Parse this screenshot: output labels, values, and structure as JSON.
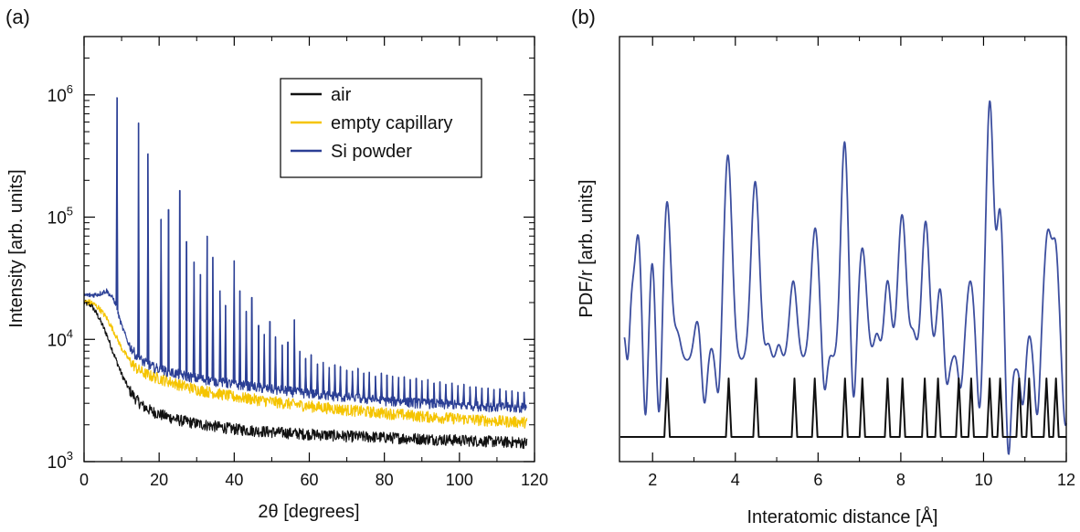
{
  "colors": {
    "air": "#111111",
    "capillary": "#f5c400",
    "si": "#2b3f95",
    "pdf": "#3d4f9f",
    "ref": "#111111",
    "axis": "#000000"
  },
  "chart_data": [
    {
      "panel": "(a)",
      "type": "line",
      "xlabel": "2θ [degrees]",
      "ylabel": "Intensity [arb. units]",
      "xlim": [
        0,
        120
      ],
      "ylim": [
        1000,
        3000000
      ],
      "yscale": "log",
      "xticks": [
        "0",
        "20",
        "40",
        "60",
        "80",
        "100",
        "120"
      ],
      "yticks": [
        {
          "base": "10",
          "exp": "3",
          "value": 1000
        },
        {
          "base": "10",
          "exp": "4",
          "value": 10000
        },
        {
          "base": "10",
          "exp": "5",
          "value": 100000
        },
        {
          "base": "10",
          "exp": "6",
          "value": 1000000
        }
      ],
      "legend_position": "top-right",
      "series": [
        {
          "name": "air",
          "color": "#111111",
          "x": [
            0,
            2,
            4,
            6,
            8,
            10,
            12,
            14,
            16,
            18,
            20,
            25,
            30,
            40,
            50,
            60,
            70,
            80,
            90,
            100,
            110,
            118
          ],
          "y": [
            20000,
            19000,
            15000,
            11000,
            7500,
            5200,
            3900,
            3200,
            2800,
            2600,
            2450,
            2200,
            2050,
            1850,
            1750,
            1680,
            1620,
            1580,
            1540,
            1500,
            1460,
            1430
          ]
        },
        {
          "name": "empty capillary",
          "color": "#f5c400",
          "x": [
            0,
            2,
            4,
            6,
            8,
            10,
            12,
            14,
            16,
            18,
            20,
            25,
            30,
            40,
            50,
            60,
            70,
            80,
            90,
            100,
            110,
            118
          ],
          "y": [
            20500,
            20000,
            18000,
            15000,
            11500,
            8500,
            6800,
            5800,
            5300,
            5000,
            4800,
            4300,
            3900,
            3400,
            3100,
            2850,
            2650,
            2500,
            2350,
            2250,
            2150,
            2100
          ]
        },
        {
          "name": "Si powder",
          "color": "#2b3f95",
          "x": [
            0,
            2,
            4,
            6,
            8,
            10,
            12,
            14,
            16,
            18,
            20,
            25,
            30,
            40,
            50,
            60,
            70,
            80,
            90,
            100,
            110,
            118
          ],
          "y": [
            23000,
            23000,
            23500,
            25000,
            21000,
            13000,
            9000,
            7300,
            6500,
            6000,
            5700,
            5200,
            4800,
            4300,
            3900,
            3600,
            3350,
            3150,
            3000,
            2900,
            2800,
            2750
          ],
          "peaks_x": [
            8.8,
            14.5,
            17.0,
            20.5,
            22.5,
            25.5,
            27.3,
            29.3,
            31.0,
            32.8,
            34.3,
            36.2,
            37.7,
            40.0,
            41.5,
            43.2,
            44.7,
            46.5,
            48.0,
            49.5,
            51.0,
            52.8,
            54.3,
            56.0,
            57.5,
            59.0,
            60.5,
            62.2,
            63.7,
            65.3,
            66.8,
            68.3,
            70.0,
            71.5,
            73.0,
            74.5,
            76.0,
            77.6,
            79.2,
            80.7,
            82.2,
            83.8,
            85.3,
            86.9,
            88.5,
            90.0,
            91.6,
            93.2,
            94.8,
            96.4,
            98.0,
            99.6,
            101.2,
            102.8,
            104.4,
            106.0,
            107.6,
            109.2,
            110.8,
            112.4,
            114.0,
            115.6,
            117.2
          ],
          "peaks_y": [
            950000,
            590000,
            330000,
            96000,
            115000,
            165000,
            63000,
            43000,
            34000,
            70000,
            47000,
            25000,
            19000,
            44000,
            25000,
            17000,
            22000,
            13000,
            11000,
            14000,
            10500,
            9000,
            9500,
            14500,
            8000,
            7000,
            7500,
            6300,
            6500,
            5900,
            6200,
            6000,
            5600,
            5500,
            5800,
            5300,
            5400,
            5000,
            5300,
            5100,
            5000,
            4900,
            4950,
            4700,
            4800,
            4600,
            4700,
            4400,
            4500,
            4300,
            4400,
            4200,
            4300,
            4100,
            4100,
            4000,
            4000,
            3900,
            3950,
            3800,
            3800,
            3700,
            3700
          ]
        }
      ]
    },
    {
      "panel": "(b)",
      "type": "line",
      "xlabel": "Interatomic distance [Å]",
      "ylabel": "PDF/r [arb. units]",
      "xlim": [
        1.2,
        12
      ],
      "xticks": [
        "2",
        "4",
        "6",
        "8",
        "10",
        "12"
      ],
      "series": [
        {
          "name": "",
          "color": "#3d4f9f",
          "baseline": -0.1,
          "peaks": [
            {
              "x": 1.33,
              "h": 0.25,
              "w": 0.07
            },
            {
              "x": 1.48,
              "h": 0.35,
              "w": 0.06
            },
            {
              "x": 1.65,
              "h": 0.95,
              "w": 0.09
            },
            {
              "x": 1.99,
              "h": 0.75,
              "w": 0.07
            },
            {
              "x": 2.35,
              "h": 1.2,
              "w": 0.09
            },
            {
              "x": 2.6,
              "h": 0.2,
              "w": 0.08
            },
            {
              "x": 3.08,
              "h": 0.3,
              "w": 0.08
            },
            {
              "x": 3.42,
              "h": 0.1,
              "w": 0.06
            },
            {
              "x": 3.82,
              "h": 1.55,
              "w": 0.1
            },
            {
              "x": 4.48,
              "h": 1.35,
              "w": 0.1
            },
            {
              "x": 4.8,
              "h": 0.12,
              "w": 0.06
            },
            {
              "x": 5.05,
              "h": 0.12,
              "w": 0.06
            },
            {
              "x": 5.4,
              "h": 0.6,
              "w": 0.09
            },
            {
              "x": 5.93,
              "h": 1.0,
              "w": 0.1
            },
            {
              "x": 6.28,
              "h": 0.05,
              "w": 0.06
            },
            {
              "x": 6.64,
              "h": 1.65,
              "w": 0.09
            },
            {
              "x": 7.07,
              "h": 0.85,
              "w": 0.1
            },
            {
              "x": 7.42,
              "h": 0.2,
              "w": 0.07
            },
            {
              "x": 7.68,
              "h": 0.6,
              "w": 0.08
            },
            {
              "x": 8.03,
              "h": 1.1,
              "w": 0.1
            },
            {
              "x": 8.3,
              "h": 0.2,
              "w": 0.07
            },
            {
              "x": 8.6,
              "h": 1.05,
              "w": 0.09
            },
            {
              "x": 8.95,
              "h": 0.55,
              "w": 0.08
            },
            {
              "x": 9.32,
              "h": 0.05,
              "w": 0.06
            },
            {
              "x": 9.68,
              "h": 0.6,
              "w": 0.1
            },
            {
              "x": 10.15,
              "h": 1.95,
              "w": 0.09
            },
            {
              "x": 10.4,
              "h": 1.1,
              "w": 0.08
            },
            {
              "x": 10.78,
              "h": -0.05,
              "w": 0.06
            },
            {
              "x": 11.1,
              "h": 0.2,
              "w": 0.07
            },
            {
              "x": 11.55,
              "h": 0.95,
              "w": 0.1
            },
            {
              "x": 11.75,
              "h": 0.75,
              "w": 0.08
            }
          ],
          "dips": [
            {
              "x": 1.4,
              "d": -0.3,
              "w": 0.05
            },
            {
              "x": 1.82,
              "d": -0.6,
              "w": 0.06
            },
            {
              "x": 2.16,
              "d": -0.55,
              "w": 0.06
            },
            {
              "x": 3.25,
              "d": -0.35,
              "w": 0.06
            },
            {
              "x": 3.6,
              "d": -0.35,
              "w": 0.06
            },
            {
              "x": 6.15,
              "d": -0.3,
              "w": 0.06
            },
            {
              "x": 6.86,
              "d": -0.45,
              "w": 0.06
            },
            {
              "x": 9.1,
              "d": -0.25,
              "w": 0.06
            },
            {
              "x": 9.45,
              "d": -0.25,
              "w": 0.06
            },
            {
              "x": 9.9,
              "d": -0.45,
              "w": 0.06
            },
            {
              "x": 10.6,
              "d": -0.75,
              "w": 0.06
            },
            {
              "x": 10.95,
              "d": -0.35,
              "w": 0.06
            },
            {
              "x": 11.3,
              "d": -0.45,
              "w": 0.06
            },
            {
              "x": 11.98,
              "d": -0.5,
              "w": 0.07
            }
          ]
        },
        {
          "name": "",
          "color": "#111111",
          "type": "stick",
          "x": [
            2.35,
            3.84,
            4.5,
            5.43,
            5.92,
            6.65,
            7.07,
            7.68,
            8.04,
            8.58,
            8.9,
            9.4,
            9.7,
            10.15,
            10.4,
            10.86,
            11.1,
            11.52,
            11.75
          ],
          "heights": [
            1,
            1,
            1,
            1,
            1,
            1,
            1,
            1,
            1,
            1,
            1,
            1,
            1,
            1,
            1,
            1,
            1,
            1,
            1
          ]
        }
      ]
    }
  ]
}
